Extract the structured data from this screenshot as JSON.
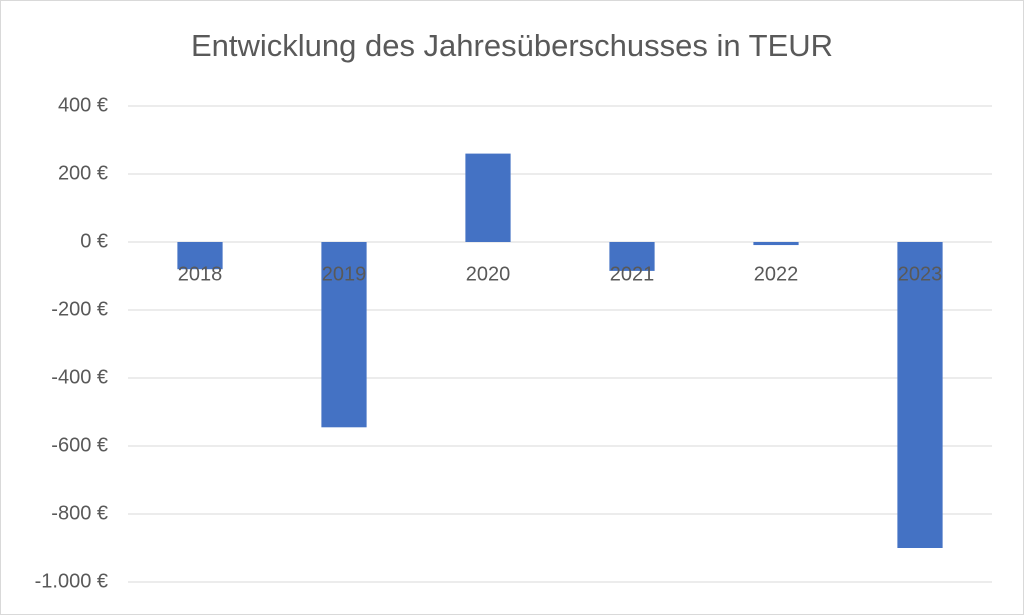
{
  "chart_data": {
    "type": "bar",
    "title": "Entwicklung des Jahresüberschusses in TEUR",
    "categories": [
      "2018",
      "2019",
      "2020",
      "2021",
      "2022",
      "2023"
    ],
    "values": [
      -80,
      -545,
      260,
      -85,
      -9,
      -900
    ],
    "color": "#4472c4",
    "ylim": [
      -1000,
      400
    ],
    "yticks": [
      {
        "value": -1000,
        "label": "-1.000 €"
      },
      {
        "value": -800,
        "label": "-800 €"
      },
      {
        "value": -600,
        "label": "-600 €"
      },
      {
        "value": -400,
        "label": "-400 €"
      },
      {
        "value": -200,
        "label": "-200 €"
      },
      {
        "value": 0,
        "label": "0 €"
      },
      {
        "value": 200,
        "label": "200 €"
      },
      {
        "value": 400,
        "label": "400 €"
      }
    ],
    "grid": true
  }
}
